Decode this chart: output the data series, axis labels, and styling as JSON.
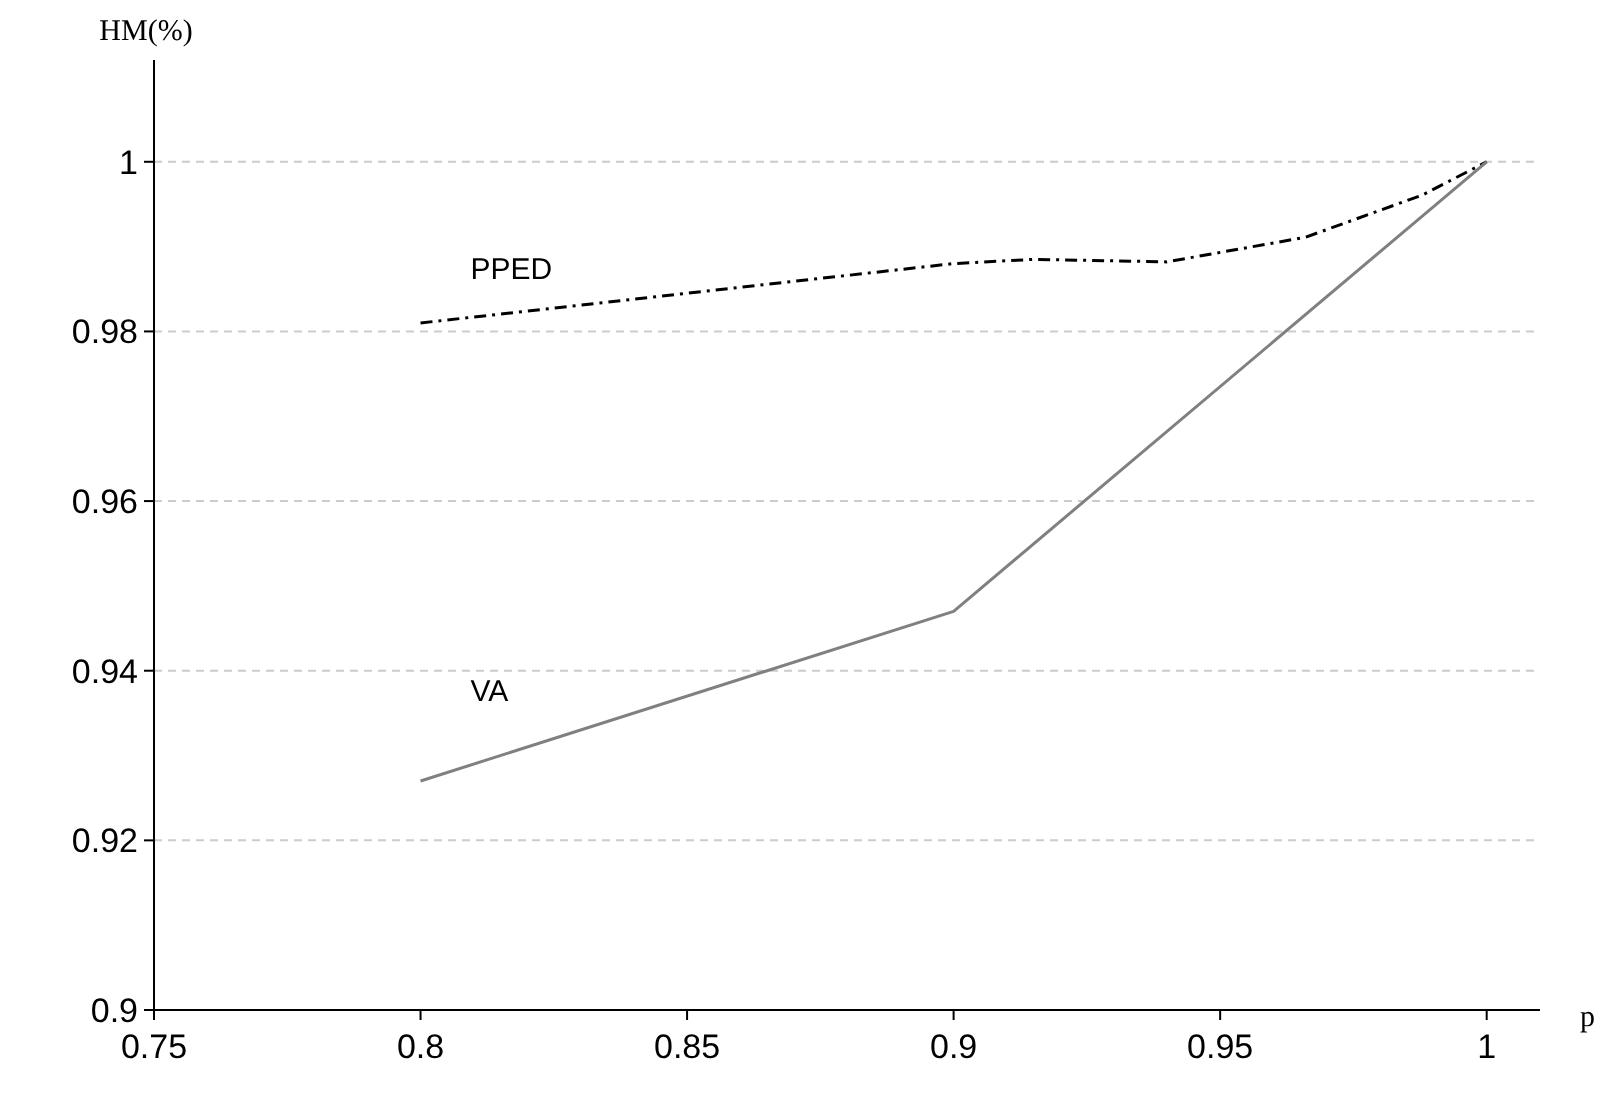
{
  "chart_data": {
    "type": "line",
    "xlabel": "p",
    "ylabel": "HM(%)",
    "xlim": [
      0.75,
      1.01
    ],
    "ylim": [
      0.9,
      1.012
    ],
    "xticks": [
      0.75,
      0.8,
      0.85,
      0.9,
      0.95,
      1
    ],
    "yticks": [
      0.9,
      0.92,
      0.94,
      0.96,
      0.98,
      1
    ],
    "grid": "y",
    "marker": "none",
    "series": [
      {
        "name": "PPED",
        "color": "#000000",
        "line_style": "dashdot",
        "x": [
          0.8,
          0.9,
          0.915,
          0.94,
          0.966,
          0.988,
          1
        ],
        "values": [
          0.981,
          0.988,
          0.9885,
          0.9882,
          0.9911,
          0.9961,
          1
        ]
      },
      {
        "name": "VA",
        "color": "#808080",
        "line_style": "solid",
        "x": [
          0.8,
          0.9,
          1
        ],
        "values": [
          0.927,
          0.947,
          1
        ]
      }
    ]
  }
}
